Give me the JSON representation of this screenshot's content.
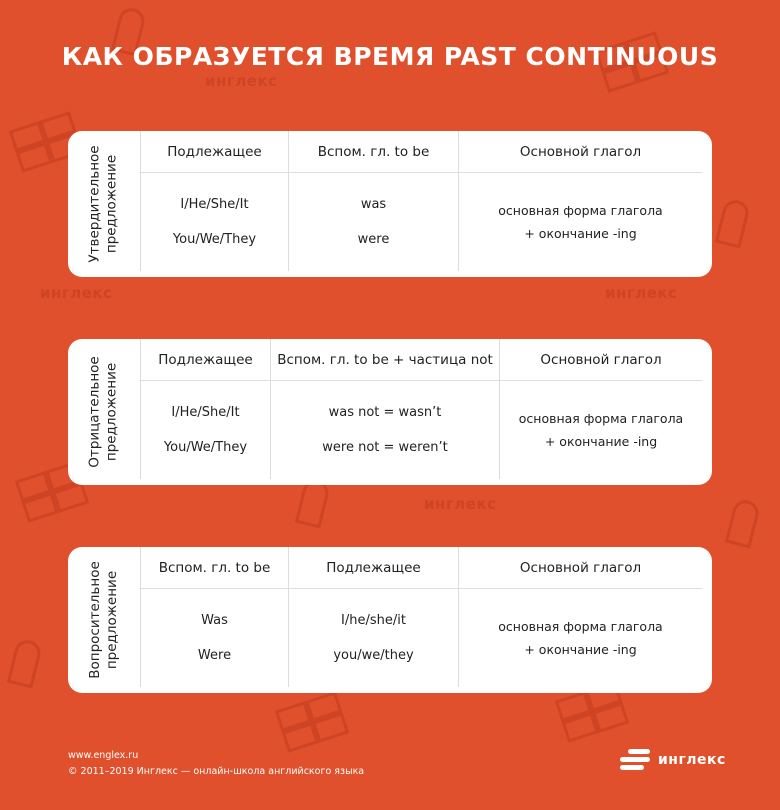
{
  "title": "КАК ОБРАЗУЕТСЯ ВРЕМЯ PAST CONTINUOUS",
  "cards": [
    {
      "side_lines": [
        "Утвердительное",
        "предложение"
      ],
      "headers": [
        "Подлежащее",
        "Вспом. гл. to be",
        "Основной глагол"
      ],
      "col1": [
        "I/He/She/It",
        "You/We/They"
      ],
      "col2": [
        "was",
        "were"
      ],
      "col3": [
        "основная форма глагола",
        "+ окончание -ing"
      ]
    },
    {
      "side_lines": [
        "Отрицательное",
        "предложение"
      ],
      "headers": [
        "Подлежащее",
        "Вспом. гл. to be + частица not",
        "Основной глагол"
      ],
      "col1": [
        "I/He/She/It",
        "You/We/They"
      ],
      "col2": [
        "was not = wasn’t",
        "were not = weren’t"
      ],
      "col3": [
        "основная форма глагола",
        "+ окончание -ing"
      ]
    },
    {
      "side_lines": [
        "Вопросительное",
        "предложение"
      ],
      "headers": [
        "Вспом. гл. to be",
        "Подлежащее",
        "Основной глагол"
      ],
      "col1": [
        "Was",
        "Were"
      ],
      "col2": [
        "I/he/she/it",
        "you/we/they"
      ],
      "col3": [
        "основная форма глагола",
        "+ окончание -ing"
      ]
    }
  ],
  "footer": {
    "url": "www.englex.ru",
    "copyright": "© 2011–2019 Инглекс — онлайн-школа английского языка",
    "logo_text": "инглекс"
  },
  "watermark_text": "инглекс",
  "colors": {
    "background": "#e0502c",
    "card": "#ffffff",
    "text": "#222222"
  }
}
